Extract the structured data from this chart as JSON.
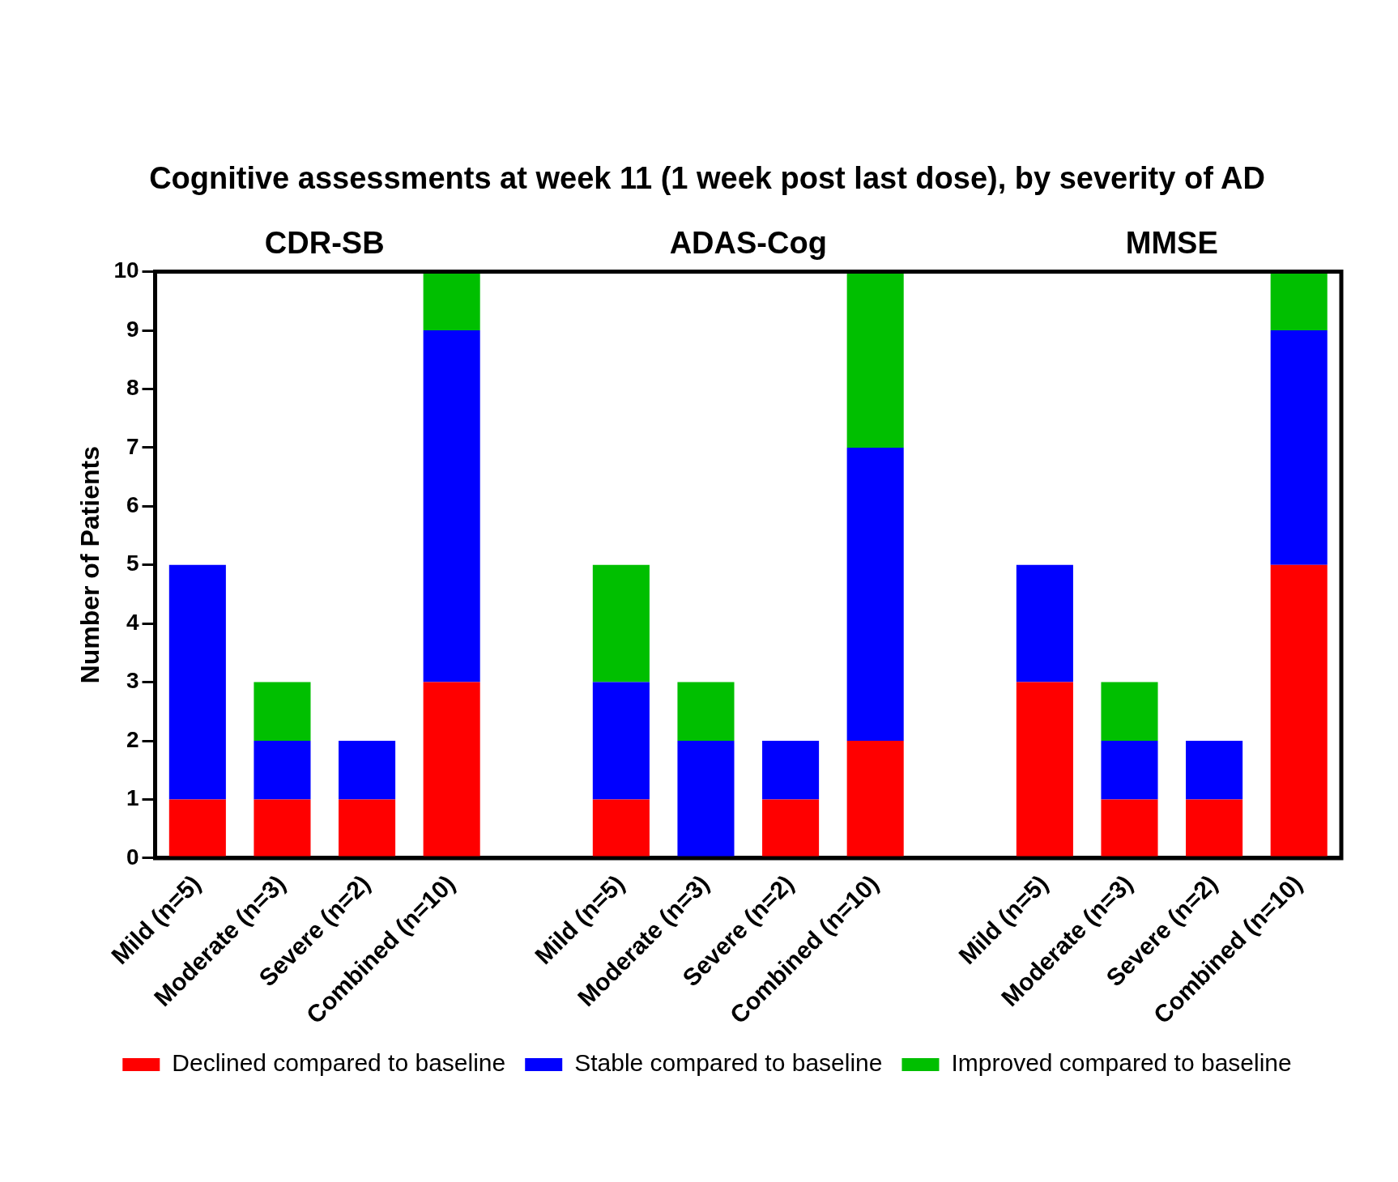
{
  "chart_data": {
    "type": "bar",
    "title": "Cognitive assessments at week 11 (1 week post last dose), by severity of AD",
    "ylabel": "Number of Patients",
    "annotations": [
      "CDR-SB",
      "ADAS-Cog",
      "MMSE"
    ],
    "categories": [
      "Mild (n=5)",
      "Moderate (n=3)",
      "Severe (n=2)",
      "Combined (n=10)",
      null,
      "Mild (n=5)",
      "Moderate (n=3)",
      "Severe (n=2)",
      "Combined (n=10)",
      null,
      "Mild (n=5)",
      "Moderate (n=3)",
      "Severe (n=2)",
      "Combined (n=10)"
    ],
    "series": [
      {
        "name": "Declined compared to baseline",
        "color": "#ff0000",
        "values": [
          1,
          1,
          1,
          3,
          null,
          1,
          0,
          1,
          2,
          null,
          3,
          1,
          1,
          5
        ]
      },
      {
        "name": "Stable compared to baseline",
        "color": "#0000ff",
        "values": [
          4,
          1,
          1,
          6,
          null,
          2,
          2,
          1,
          5,
          null,
          2,
          1,
          1,
          4
        ]
      },
      {
        "name": "Improved compared to baseline",
        "color": "#00bf00",
        "values": [
          0,
          1,
          0,
          1,
          null,
          2,
          1,
          0,
          3,
          null,
          0,
          1,
          0,
          1
        ]
      }
    ],
    "stacked": true,
    "ylim": [
      0,
      10
    ],
    "yticks": [
      0,
      1,
      2,
      3,
      4,
      5,
      6,
      7,
      8,
      9,
      10
    ],
    "grid": false,
    "legend": "bottom"
  }
}
